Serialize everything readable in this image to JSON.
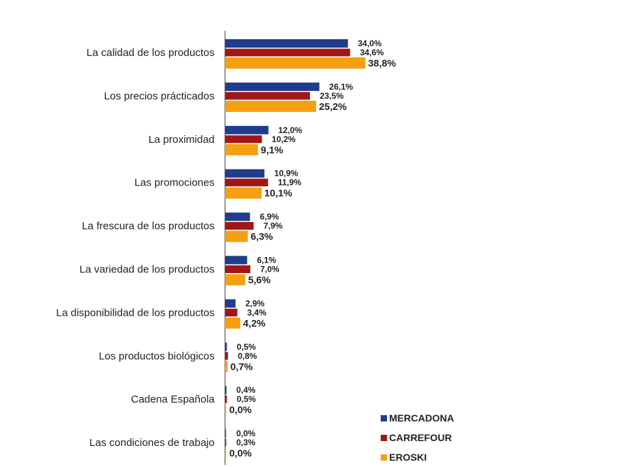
{
  "chart_data": {
    "type": "bar",
    "orientation": "horizontal",
    "title": "",
    "xlabel": "",
    "ylabel": "",
    "xlim": [
      0,
      40
    ],
    "grid": false,
    "legend_position": "bottom-right",
    "categories": [
      "La calidad de los productos",
      "Los precios prácticados",
      "La proximidad",
      "Las promociones",
      "La frescura de los productos",
      "La variedad de los productos",
      "La disponibilidad de los productos",
      "Los productos biológicos",
      "Cadena Española",
      "Las condiciones de trabajo"
    ],
    "series": [
      {
        "name": "MERCADONA",
        "color": "#1F3D8C",
        "values": [
          34.0,
          26.1,
          12.0,
          10.9,
          6.9,
          6.1,
          2.9,
          0.5,
          0.4,
          0.0
        ],
        "labels": [
          "34,0%",
          "26,1%",
          "12,0%",
          "10,9%",
          "6,9%",
          "6,1%",
          "2,9%",
          "0,5%",
          "0,4%",
          "0,0%"
        ]
      },
      {
        "name": "CARREFOUR",
        "color": "#A31616",
        "values": [
          34.6,
          23.5,
          10.2,
          11.9,
          7.9,
          7.0,
          3.4,
          0.8,
          0.5,
          0.3
        ],
        "labels": [
          "34,6%",
          "23,5%",
          "10,2%",
          "11,9%",
          "7,9%",
          "7,0%",
          "3,4%",
          "0,8%",
          "0,5%",
          "0,3%"
        ]
      },
      {
        "name": "EROSKI",
        "color": "#F5A011",
        "values": [
          38.8,
          25.2,
          9.1,
          10.1,
          6.3,
          5.6,
          4.2,
          0.7,
          0.0,
          0.0
        ],
        "labels": [
          "38,8%",
          "25,2%",
          "9,1%",
          "10,1%",
          "6,3%",
          "5,6%",
          "4,2%",
          "0,7%",
          "0,0%",
          "0,0%"
        ]
      }
    ]
  }
}
